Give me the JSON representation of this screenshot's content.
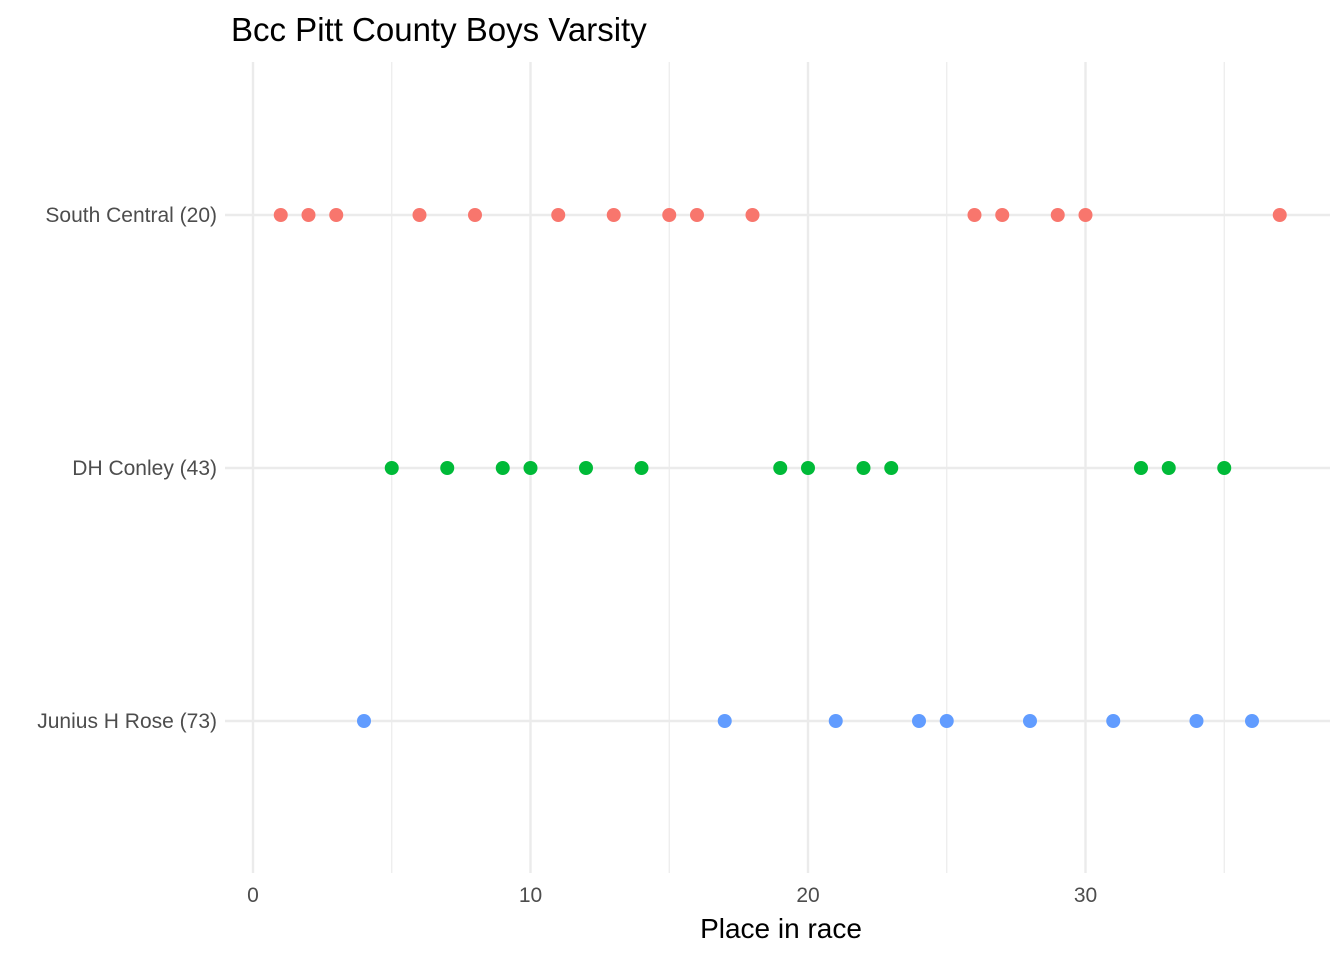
{
  "chart_data": {
    "type": "scatter",
    "title": "Bcc Pitt County Boys Varsity",
    "xlabel": "Place in race",
    "ylabel": "",
    "xlim": [
      0,
      38
    ],
    "x_ticks": [
      0,
      10,
      20,
      30
    ],
    "categories": [
      "South Central (20)",
      "DH Conley (43)",
      "Junius H Rose (73)"
    ],
    "grid": true,
    "legend": "none",
    "series": [
      {
        "name": "South Central (20)",
        "color": "#F8766D",
        "x": [
          1,
          2,
          3,
          6,
          8,
          11,
          13,
          15,
          16,
          18,
          26,
          27,
          29,
          30,
          37
        ]
      },
      {
        "name": "DH Conley (43)",
        "color": "#00BA38",
        "x": [
          5,
          7,
          9,
          10,
          12,
          14,
          19,
          20,
          22,
          23,
          32,
          33,
          35
        ]
      },
      {
        "name": "Junius H Rose (73)",
        "color": "#619CFF",
        "x": [
          4,
          17,
          21,
          24,
          25,
          28,
          31,
          34,
          36
        ]
      }
    ]
  }
}
